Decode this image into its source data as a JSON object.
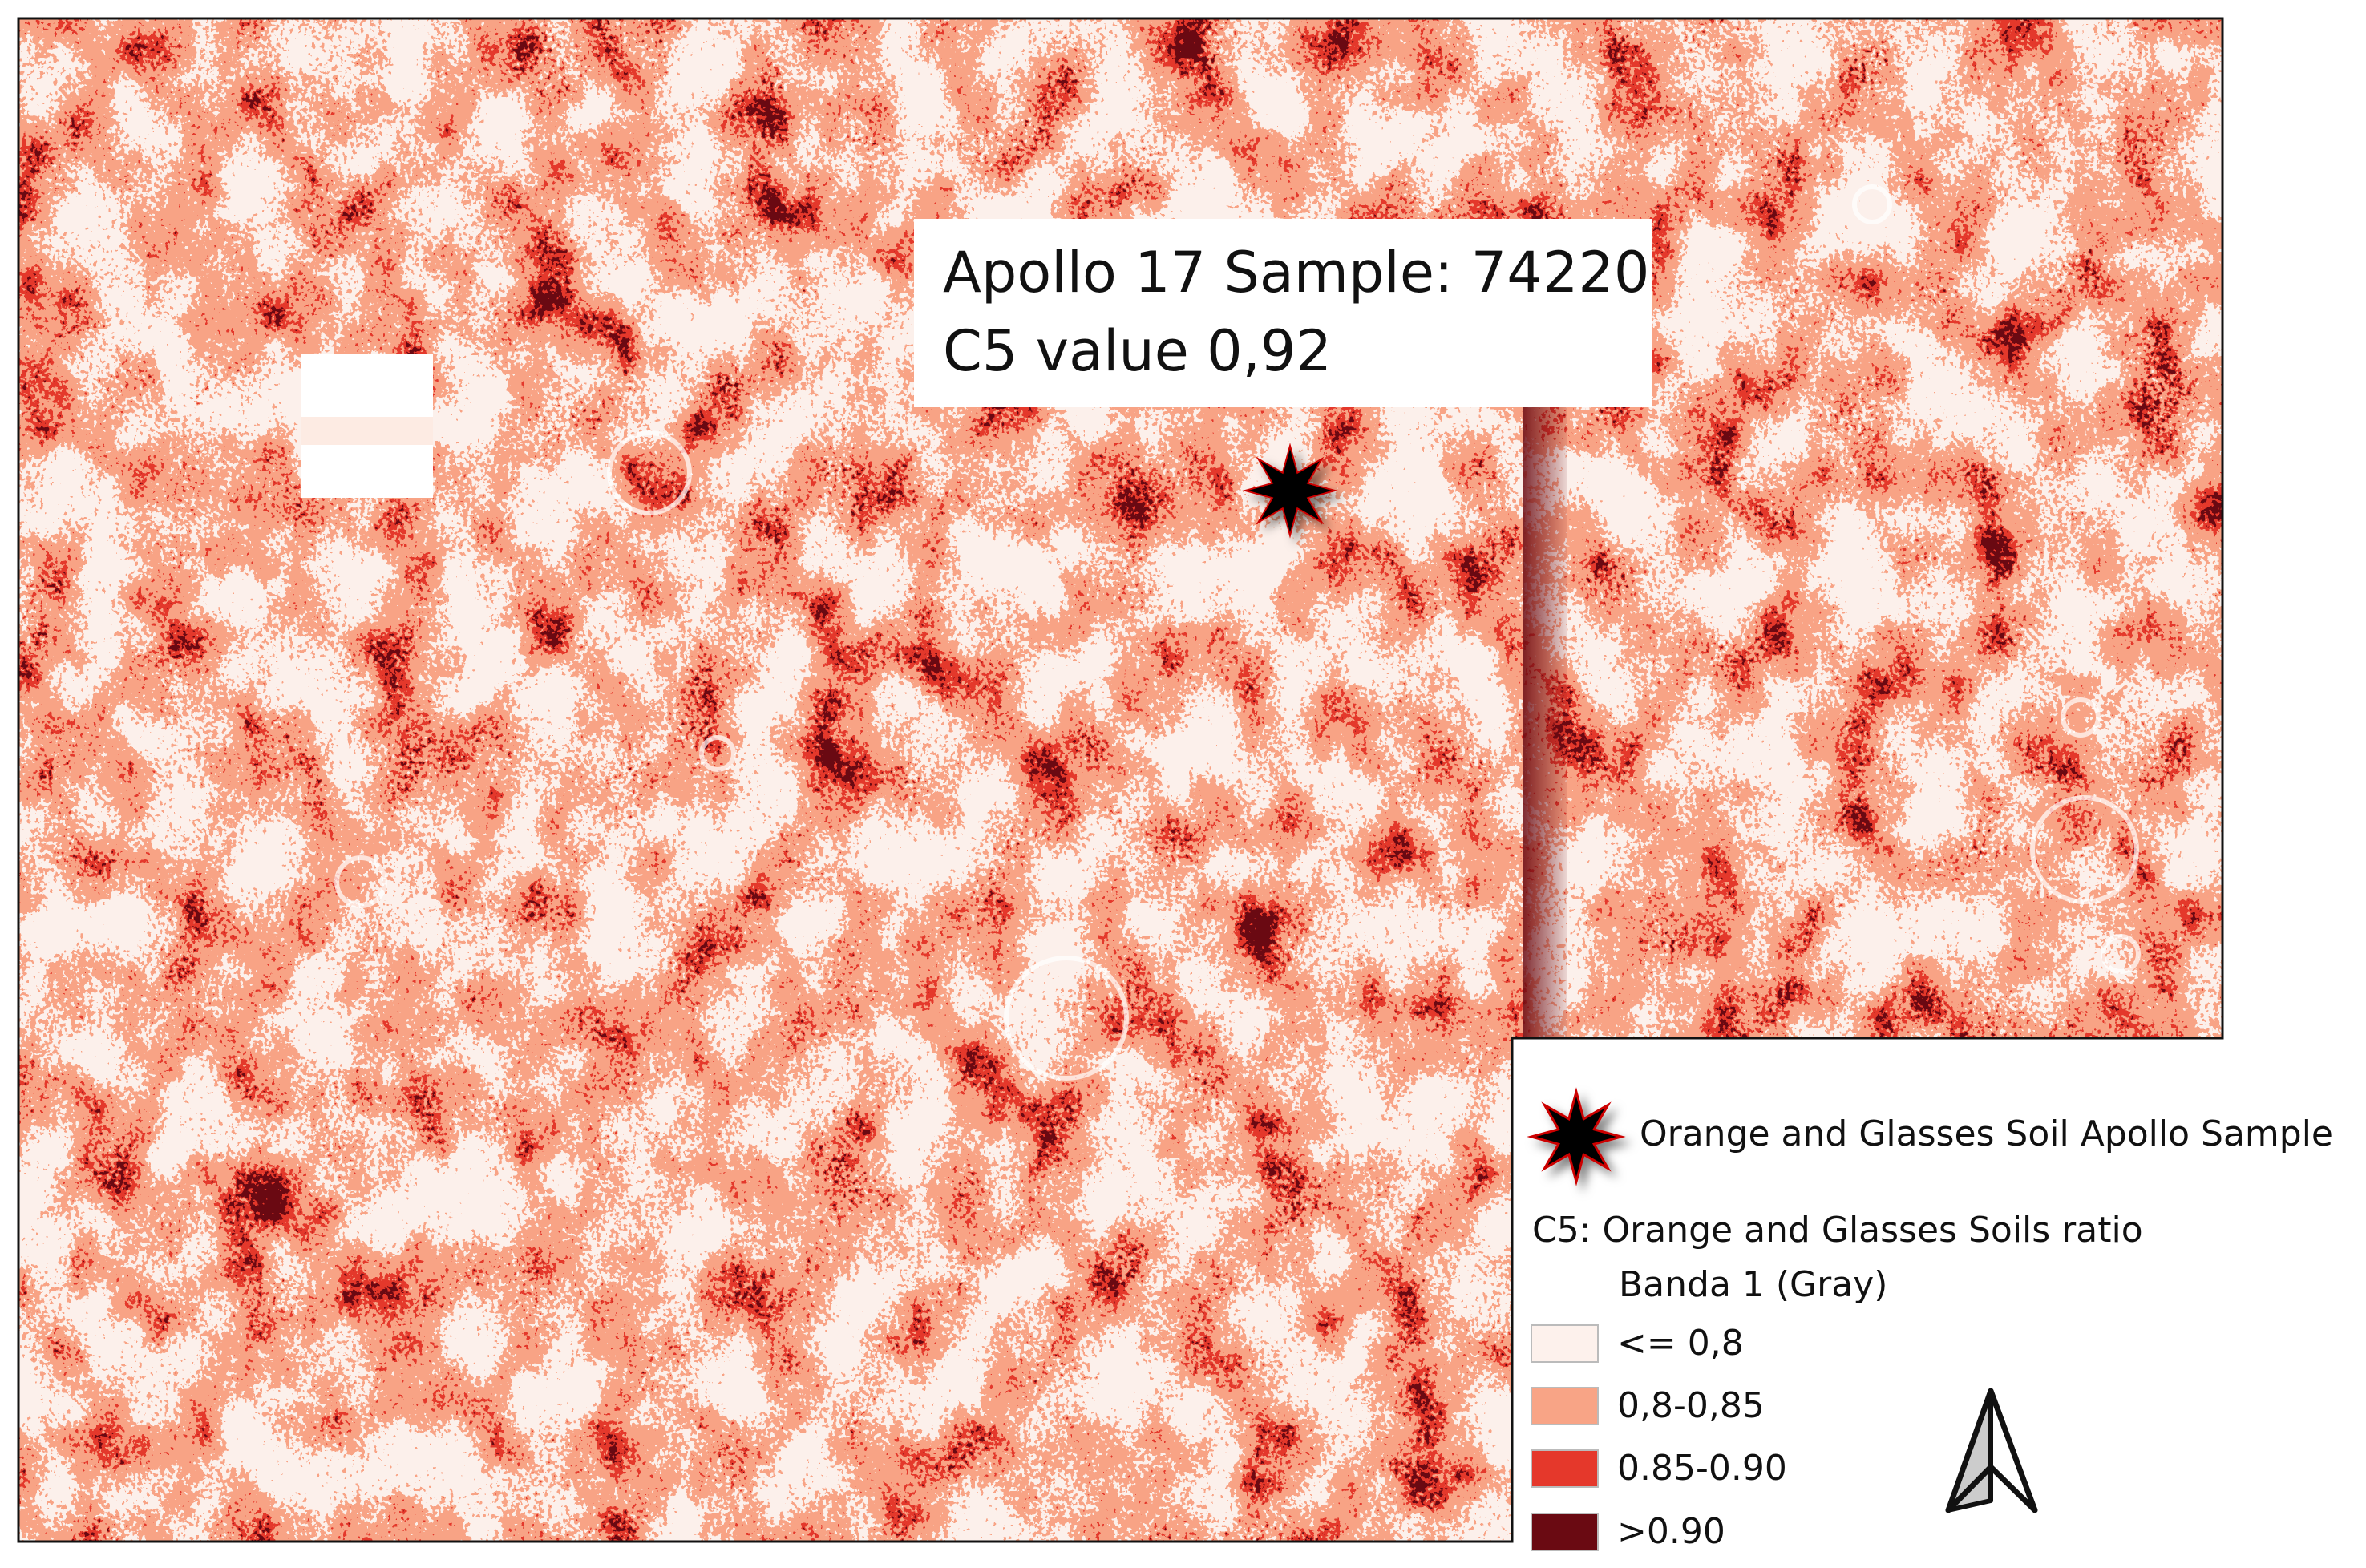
{
  "map": {
    "annotation": {
      "line1": "Apollo 17 Sample: 74220",
      "line2": "C5 value 0,92"
    },
    "sample_marker_icon": "eight-point-star-icon",
    "class_colors": [
      "#fdf1ec",
      "#f8a486",
      "#e5382b",
      "#6a0a12"
    ]
  },
  "legend": {
    "point_layer": {
      "icon": "eight-point-star-icon",
      "label": "Orange and Glasses Soil Apollo Sample"
    },
    "raster_layer": {
      "title": "C5: Orange and Glasses Soils ratio",
      "band": "Banda 1 (Gray)",
      "classes": [
        {
          "label": "<= 0,8",
          "color": "#fdf1ec"
        },
        {
          "label": "0,8-0,85",
          "color": "#f8a486"
        },
        {
          "label": "0.85-0.90",
          "color": "#e5382b"
        },
        {
          "label": ">0.90",
          "color": "#6a0a12"
        }
      ]
    },
    "north_arrow_icon": "north-arrow-icon"
  }
}
